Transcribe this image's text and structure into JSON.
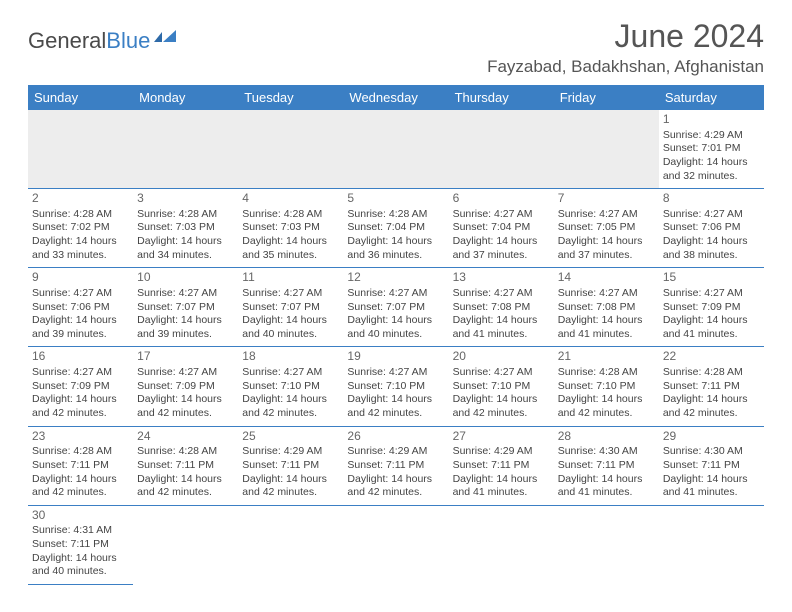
{
  "brand": {
    "part1": "General",
    "part2": "Blue"
  },
  "title": "June 2024",
  "location": "Fayzabad, Badakhshan, Afghanistan",
  "colors": {
    "header_bg": "#3b7fc4",
    "header_text": "#ffffff",
    "border": "#3b7fc4",
    "text": "#444444",
    "title_text": "#555555",
    "empty_bg": "#ededed"
  },
  "day_headers": [
    "Sunday",
    "Monday",
    "Tuesday",
    "Wednesday",
    "Thursday",
    "Friday",
    "Saturday"
  ],
  "weeks": [
    [
      null,
      null,
      null,
      null,
      null,
      null,
      {
        "n": "1",
        "sr": "4:29 AM",
        "ss": "7:01 PM",
        "dl": "14 hours and 32 minutes."
      }
    ],
    [
      {
        "n": "2",
        "sr": "4:28 AM",
        "ss": "7:02 PM",
        "dl": "14 hours and 33 minutes."
      },
      {
        "n": "3",
        "sr": "4:28 AM",
        "ss": "7:03 PM",
        "dl": "14 hours and 34 minutes."
      },
      {
        "n": "4",
        "sr": "4:28 AM",
        "ss": "7:03 PM",
        "dl": "14 hours and 35 minutes."
      },
      {
        "n": "5",
        "sr": "4:28 AM",
        "ss": "7:04 PM",
        "dl": "14 hours and 36 minutes."
      },
      {
        "n": "6",
        "sr": "4:27 AM",
        "ss": "7:04 PM",
        "dl": "14 hours and 37 minutes."
      },
      {
        "n": "7",
        "sr": "4:27 AM",
        "ss": "7:05 PM",
        "dl": "14 hours and 37 minutes."
      },
      {
        "n": "8",
        "sr": "4:27 AM",
        "ss": "7:06 PM",
        "dl": "14 hours and 38 minutes."
      }
    ],
    [
      {
        "n": "9",
        "sr": "4:27 AM",
        "ss": "7:06 PM",
        "dl": "14 hours and 39 minutes."
      },
      {
        "n": "10",
        "sr": "4:27 AM",
        "ss": "7:07 PM",
        "dl": "14 hours and 39 minutes."
      },
      {
        "n": "11",
        "sr": "4:27 AM",
        "ss": "7:07 PM",
        "dl": "14 hours and 40 minutes."
      },
      {
        "n": "12",
        "sr": "4:27 AM",
        "ss": "7:07 PM",
        "dl": "14 hours and 40 minutes."
      },
      {
        "n": "13",
        "sr": "4:27 AM",
        "ss": "7:08 PM",
        "dl": "14 hours and 41 minutes."
      },
      {
        "n": "14",
        "sr": "4:27 AM",
        "ss": "7:08 PM",
        "dl": "14 hours and 41 minutes."
      },
      {
        "n": "15",
        "sr": "4:27 AM",
        "ss": "7:09 PM",
        "dl": "14 hours and 41 minutes."
      }
    ],
    [
      {
        "n": "16",
        "sr": "4:27 AM",
        "ss": "7:09 PM",
        "dl": "14 hours and 42 minutes."
      },
      {
        "n": "17",
        "sr": "4:27 AM",
        "ss": "7:09 PM",
        "dl": "14 hours and 42 minutes."
      },
      {
        "n": "18",
        "sr": "4:27 AM",
        "ss": "7:10 PM",
        "dl": "14 hours and 42 minutes."
      },
      {
        "n": "19",
        "sr": "4:27 AM",
        "ss": "7:10 PM",
        "dl": "14 hours and 42 minutes."
      },
      {
        "n": "20",
        "sr": "4:27 AM",
        "ss": "7:10 PM",
        "dl": "14 hours and 42 minutes."
      },
      {
        "n": "21",
        "sr": "4:28 AM",
        "ss": "7:10 PM",
        "dl": "14 hours and 42 minutes."
      },
      {
        "n": "22",
        "sr": "4:28 AM",
        "ss": "7:11 PM",
        "dl": "14 hours and 42 minutes."
      }
    ],
    [
      {
        "n": "23",
        "sr": "4:28 AM",
        "ss": "7:11 PM",
        "dl": "14 hours and 42 minutes."
      },
      {
        "n": "24",
        "sr": "4:28 AM",
        "ss": "7:11 PM",
        "dl": "14 hours and 42 minutes."
      },
      {
        "n": "25",
        "sr": "4:29 AM",
        "ss": "7:11 PM",
        "dl": "14 hours and 42 minutes."
      },
      {
        "n": "26",
        "sr": "4:29 AM",
        "ss": "7:11 PM",
        "dl": "14 hours and 42 minutes."
      },
      {
        "n": "27",
        "sr": "4:29 AM",
        "ss": "7:11 PM",
        "dl": "14 hours and 41 minutes."
      },
      {
        "n": "28",
        "sr": "4:30 AM",
        "ss": "7:11 PM",
        "dl": "14 hours and 41 minutes."
      },
      {
        "n": "29",
        "sr": "4:30 AM",
        "ss": "7:11 PM",
        "dl": "14 hours and 41 minutes."
      }
    ],
    [
      {
        "n": "30",
        "sr": "4:31 AM",
        "ss": "7:11 PM",
        "dl": "14 hours and 40 minutes."
      },
      null,
      null,
      null,
      null,
      null,
      null
    ]
  ],
  "labels": {
    "sunrise": "Sunrise:",
    "sunset": "Sunset:",
    "daylight": "Daylight:"
  }
}
